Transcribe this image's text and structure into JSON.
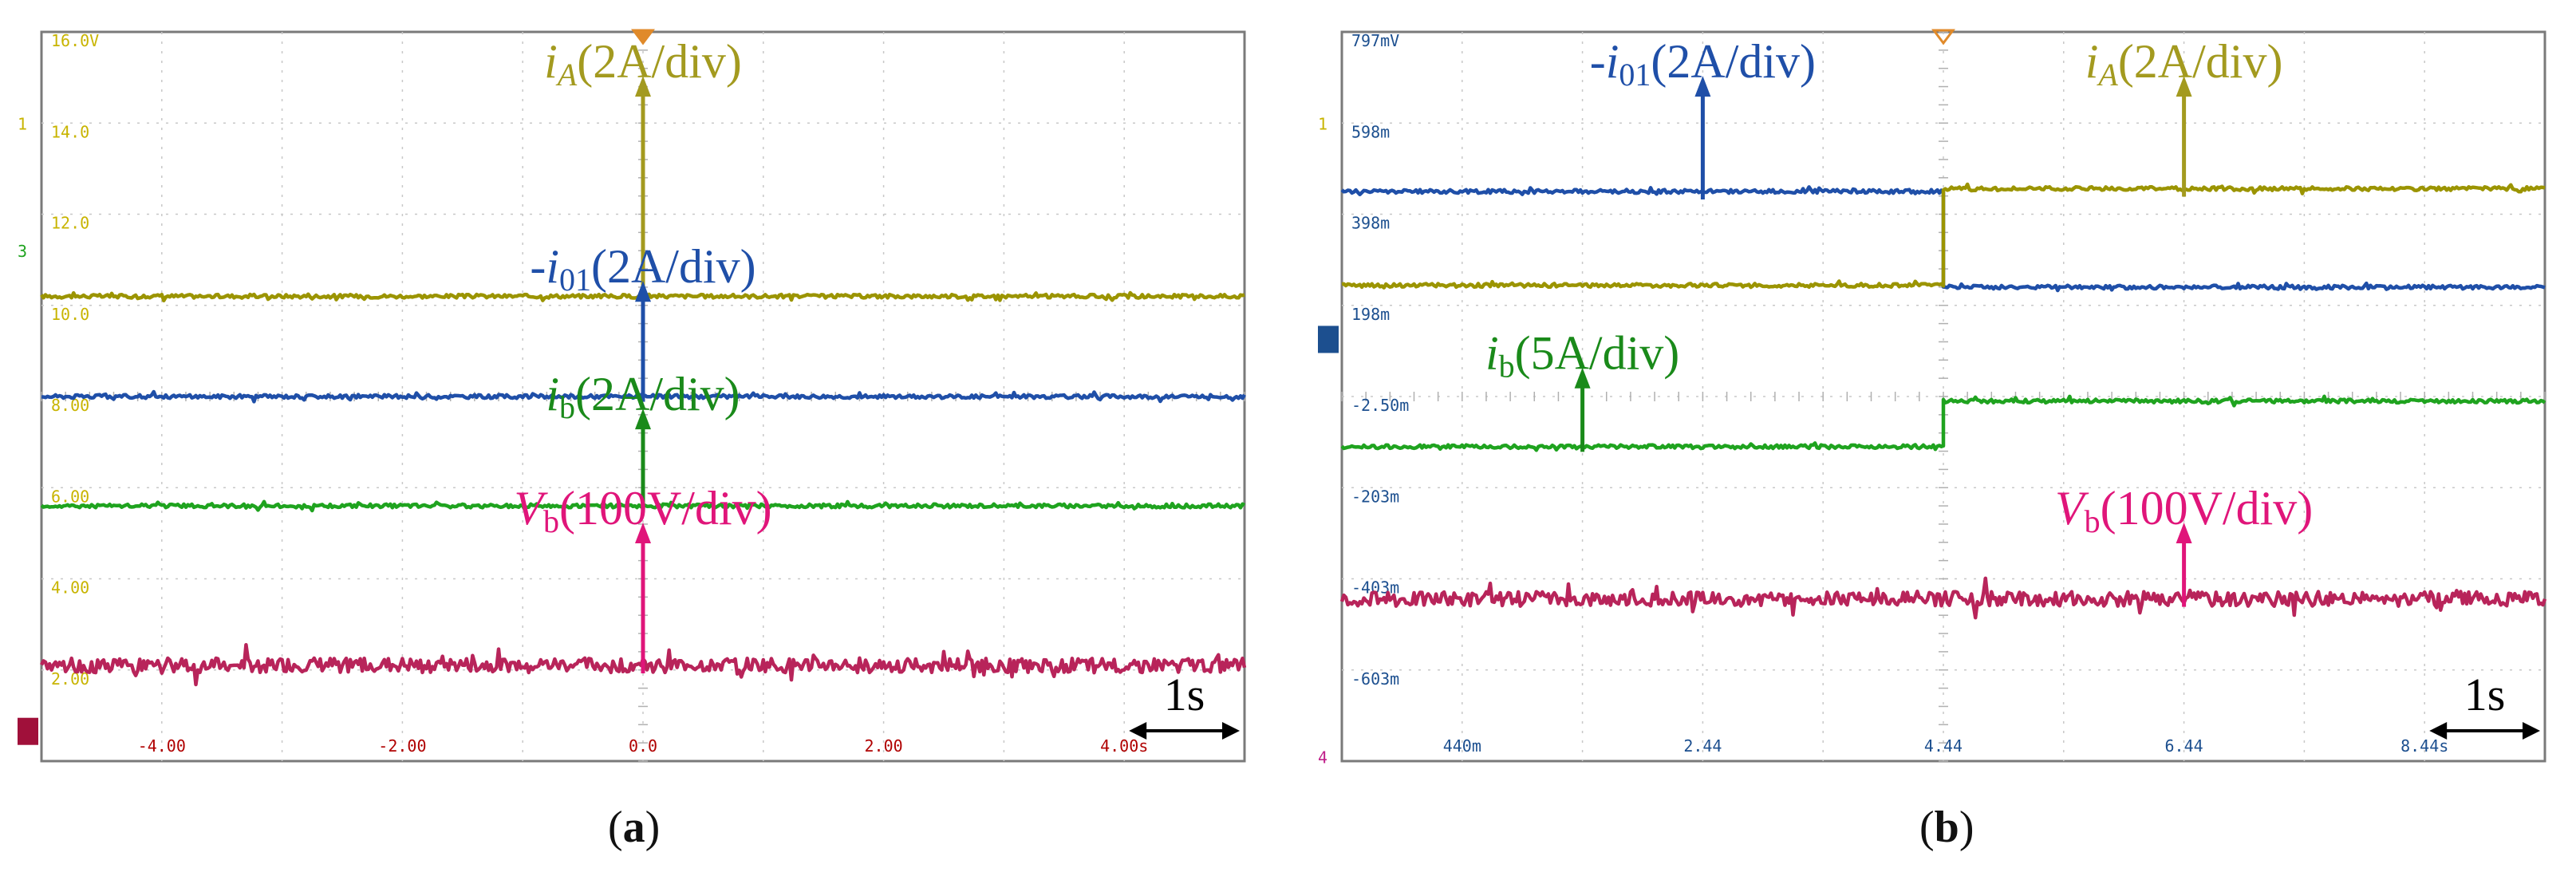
{
  "chart_data": [
    {
      "type": "line",
      "panel": "a",
      "caption_letter": "a",
      "background": "#ffffff",
      "grid_color": "#c8c8c8",
      "frame_color": "#7a7a7a",
      "y_tick_color": "#c8b400",
      "x_tick_color": "#b00000",
      "y_ticks": [
        "16.0V",
        "14.0",
        "12.0",
        "10.0",
        "8.00",
        "6.00",
        "4.00",
        "2.00"
      ],
      "x_ticks": [
        "-4.00",
        "-2.00",
        "0.0",
        "2.00",
        "4.00s"
      ],
      "time_scale_label": "1s",
      "divisions": {
        "x": 10,
        "y": 8
      },
      "series": [
        {
          "name": "iA(2A/div)",
          "label_parts": [
            {
              "t": "i",
              "italic": true
            },
            {
              "t": "A",
              "italic": true,
              "sub": true
            },
            {
              "t": "(2A/div)"
            }
          ],
          "color": "#9b9400",
          "label_color": "#a39a1f",
          "segments": [
            {
              "t0": 0,
              "t1": 10,
              "level": 5.1
            }
          ],
          "noise": 0.02,
          "label_x": 5.0,
          "label_y": 7.5,
          "arrow_to": 5.35
        },
        {
          "name": "-i01(2A/div)",
          "label_parts": [
            {
              "t": "-"
            },
            {
              "t": "i",
              "italic": true
            },
            {
              "t": "01",
              "sub": true
            },
            {
              "t": "(2A/div)"
            }
          ],
          "color": "#1f4fa8",
          "label_color": "#1f4fa8",
          "segments": [
            {
              "t0": 0,
              "t1": 10,
              "level": 4.0
            }
          ],
          "noise": 0.02,
          "label_x": 5.0,
          "label_y": 5.25,
          "arrow_to": 4.1
        },
        {
          "name": "ib(2A/div)",
          "label_parts": [
            {
              "t": "i",
              "italic": true
            },
            {
              "t": "b",
              "sub": true
            },
            {
              "t": "(2A/div)"
            }
          ],
          "color": "#1fa31f",
          "label_color": "#1a8a1a",
          "segments": [
            {
              "t0": 0,
              "t1": 10,
              "level": 2.8
            }
          ],
          "noise": 0.02,
          "label_x": 5.0,
          "label_y": 3.85,
          "arrow_to": 2.9
        },
        {
          "name": "Vb(100V/div)",
          "label_parts": [
            {
              "t": "V",
              "italic": true
            },
            {
              "t": "b",
              "sub": true
            },
            {
              "t": "(100V/div)"
            }
          ],
          "color": "#b8245a",
          "label_color": "#e0157a",
          "segments": [
            {
              "t0": 0,
              "t1": 10,
              "level": 1.05
            }
          ],
          "noise": 0.08,
          "label_x": 5.0,
          "label_y": 2.6,
          "arrow_to": 1.12
        }
      ],
      "side_markers": [
        "1",
        "3"
      ]
    },
    {
      "type": "line",
      "panel": "b",
      "caption_letter": "b",
      "background": "#ffffff",
      "grid_color": "#c8c8c8",
      "frame_color": "#7a7a7a",
      "y_tick_color": "#1c4f8f",
      "x_tick_color": "#1c4f8f",
      "y_ticks": [
        "797mV",
        "598m",
        "398m",
        "198m",
        "-2.50m",
        "-203m",
        "-403m",
        "-603m"
      ],
      "x_ticks": [
        "440m",
        "2.44",
        "4.44",
        "6.44",
        "8.44s"
      ],
      "time_scale_label": "1s",
      "divisions": {
        "x": 10,
        "y": 8
      },
      "series": [
        {
          "name": "-i01(2A/div)",
          "label_parts": [
            {
              "t": "-"
            },
            {
              "t": "i",
              "italic": true
            },
            {
              "t": "01",
              "sub": true
            },
            {
              "t": "(2A/div)"
            }
          ],
          "color": "#1f4fa8",
          "label_color": "#1f4fa8",
          "segments": [
            {
              "t0": 0,
              "t1": 5,
              "level": 6.25
            },
            {
              "t0": 5,
              "t1": 10,
              "level": 5.2
            }
          ],
          "noise": 0.02,
          "label_x": 3.0,
          "label_y": 7.5,
          "arrow_to": 6.32
        },
        {
          "name": "iA(2A/div)",
          "label_parts": [
            {
              "t": "i",
              "italic": true
            },
            {
              "t": "A",
              "italic": true,
              "sub": true
            },
            {
              "t": "(2A/div)"
            }
          ],
          "color": "#9b9400",
          "label_color": "#a39a1f",
          "segments": [
            {
              "t0": 0,
              "t1": 5,
              "level": 5.22
            },
            {
              "t0": 5,
              "t1": 10,
              "level": 6.28
            }
          ],
          "noise": 0.02,
          "label_x": 7.0,
          "label_y": 7.5,
          "arrow_to": 6.35
        },
        {
          "name": "ib(5A/div)",
          "label_parts": [
            {
              "t": "i",
              "italic": true
            },
            {
              "t": "b",
              "sub": true
            },
            {
              "t": "(5A/div)"
            }
          ],
          "color": "#1fa31f",
          "label_color": "#1a8a1a",
          "segments": [
            {
              "t0": 0,
              "t1": 5,
              "level": 3.45
            },
            {
              "t0": 5,
              "t1": 10,
              "level": 3.95
            }
          ],
          "noise": 0.02,
          "label_x": 2.0,
          "label_y": 4.3,
          "arrow_to": 3.55
        },
        {
          "name": "Vb(100V/div)",
          "label_parts": [
            {
              "t": "V",
              "italic": true
            },
            {
              "t": "b",
              "sub": true
            },
            {
              "t": "(100V/div)"
            }
          ],
          "color": "#b8245a",
          "label_color": "#e0157a",
          "segments": [
            {
              "t0": 0,
              "t1": 10,
              "level": 1.78
            }
          ],
          "noise": 0.08,
          "label_x": 7.0,
          "label_y": 2.6,
          "arrow_to": 1.85
        }
      ],
      "side_markers": [
        "1",
        "4"
      ]
    }
  ]
}
